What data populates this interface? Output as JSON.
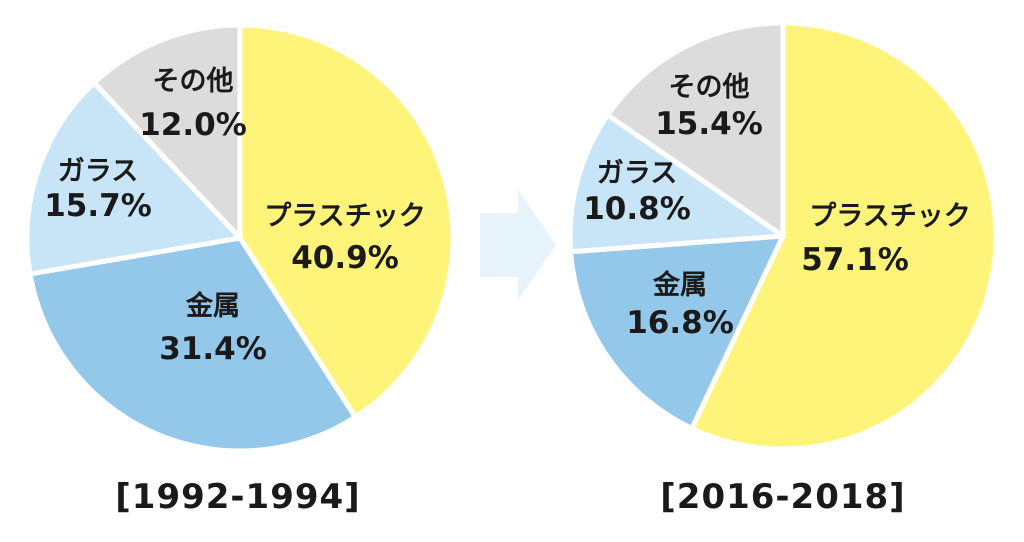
{
  "chart_data": [
    {
      "type": "pie",
      "period_label": "[1992-1994]",
      "slices": [
        {
          "name": "プラスチック",
          "value": 40.9,
          "label": "40.9%",
          "color": "#FFF47A"
        },
        {
          "name": "金属",
          "value": 31.4,
          "label": "31.4%",
          "color": "#93C8EA"
        },
        {
          "name": "ガラス",
          "value": 15.7,
          "label": "15.7%",
          "color": "#C8E5F7"
        },
        {
          "name": "その他",
          "value": 12.0,
          "label": "12.0%",
          "color": "#DCDCDC"
        }
      ]
    },
    {
      "type": "pie",
      "period_label": "[2016-2018]",
      "slices": [
        {
          "name": "プラスチック",
          "value": 57.1,
          "label": "57.1%",
          "color": "#FFF47A"
        },
        {
          "name": "金属",
          "value": 16.8,
          "label": "16.8%",
          "color": "#93C8EA"
        },
        {
          "name": "ガラス",
          "value": 10.8,
          "label": "10.8%",
          "color": "#C8E5F7"
        },
        {
          "name": "その他",
          "value": 15.4,
          "label": "15.4%",
          "color": "#DCDCDC"
        }
      ]
    }
  ],
  "arrow_color": "#E6F3FB",
  "separator_color": "#ffffff"
}
